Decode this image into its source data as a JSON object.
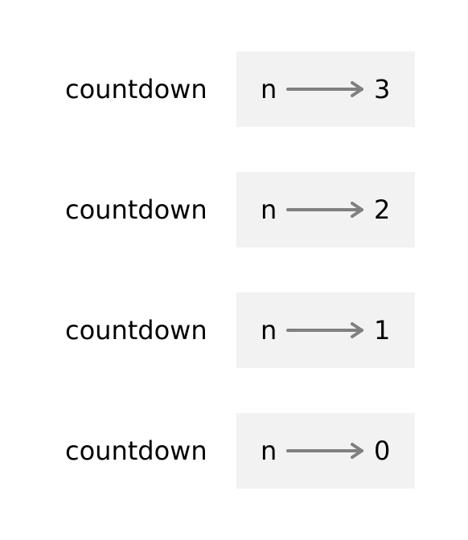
{
  "colors": {
    "background": "#ffffff",
    "frame_fill": "#f2f2f2",
    "arrow": "#808080",
    "text": "#000000"
  },
  "frames": [
    {
      "function": "countdown",
      "variable": "n",
      "value": "3"
    },
    {
      "function": "countdown",
      "variable": "n",
      "value": "2"
    },
    {
      "function": "countdown",
      "variable": "n",
      "value": "1"
    },
    {
      "function": "countdown",
      "variable": "n",
      "value": "0"
    }
  ]
}
